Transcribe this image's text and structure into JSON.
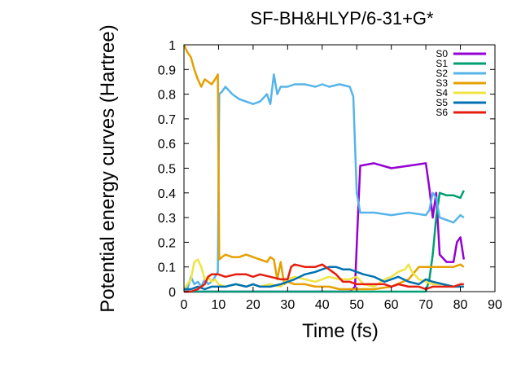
{
  "chart_data": {
    "type": "line",
    "title": "SF-BH&HLYP/6-31+G*",
    "xlabel": "Time (fs)",
    "ylabel": "Potential energy curves (Hartree)",
    "xlim": [
      0,
      90
    ],
    "ylim": [
      0,
      1
    ],
    "xticks": [
      "0",
      "10",
      "20",
      "30",
      "40",
      "50",
      "60",
      "70",
      "80",
      "90"
    ],
    "yticks": [
      "0",
      "0.1",
      "0.2",
      "0.3",
      "0.4",
      "0.5",
      "0.6",
      "0.7",
      "0.8",
      "0.9",
      "1"
    ],
    "grid": false,
    "legend_position": "top-right",
    "series": [
      {
        "name": "S0",
        "color": "#9400d3",
        "x": [
          0,
          5,
          10,
          20,
          30,
          40,
          48,
          49.5,
          50.5,
          51,
          55,
          60,
          65,
          70,
          71,
          72,
          73,
          74,
          76,
          78,
          79,
          80,
          81
        ],
        "y": [
          0,
          0,
          0,
          0,
          0,
          0,
          0,
          0.02,
          0.35,
          0.51,
          0.52,
          0.5,
          0.51,
          0.52,
          0.42,
          0.3,
          0.4,
          0.15,
          0.12,
          0.12,
          0.2,
          0.22,
          0.13
        ]
      },
      {
        "name": "S1",
        "color": "#009e73",
        "x": [
          0,
          10,
          20,
          30,
          40,
          50,
          60,
          70,
          71,
          72,
          73,
          74,
          76,
          78,
          80,
          81
        ],
        "y": [
          0,
          0,
          0,
          0,
          0,
          0,
          0,
          0,
          0.05,
          0.15,
          0.3,
          0.4,
          0.39,
          0.39,
          0.38,
          0.41
        ]
      },
      {
        "name": "S2",
        "color": "#56b4e9",
        "x": [
          0,
          1,
          2,
          3,
          4,
          5,
          6,
          7,
          8,
          9,
          9.8,
          10.2,
          11,
          12,
          14,
          16,
          18,
          20,
          22,
          24,
          25,
          26,
          27,
          28,
          30,
          32,
          35,
          38,
          40,
          42,
          45,
          48,
          49,
          50,
          51,
          55,
          60,
          65,
          70,
          71,
          72,
          73,
          74,
          76,
          78,
          80,
          81
        ],
        "y": [
          0.02,
          0.01,
          0.06,
          0.03,
          0.04,
          0.02,
          0.05,
          0.03,
          0.04,
          0.06,
          0.08,
          0.8,
          0.81,
          0.83,
          0.8,
          0.78,
          0.77,
          0.76,
          0.77,
          0.8,
          0.76,
          0.88,
          0.8,
          0.83,
          0.83,
          0.84,
          0.84,
          0.83,
          0.84,
          0.83,
          0.84,
          0.83,
          0.79,
          0.4,
          0.32,
          0.32,
          0.31,
          0.32,
          0.31,
          0.33,
          0.4,
          0.38,
          0.3,
          0.29,
          0.28,
          0.31,
          0.3
        ]
      },
      {
        "name": "S3",
        "color": "#e69f00",
        "x": [
          0,
          1,
          2,
          3,
          4,
          5,
          6,
          7,
          8,
          9,
          9.8,
          10.2,
          11,
          12,
          14,
          16,
          18,
          20,
          22,
          24,
          25,
          26,
          27,
          28,
          29,
          30,
          32,
          35,
          38,
          40,
          42,
          45,
          48,
          50,
          55,
          60,
          65,
          68,
          70,
          72,
          75,
          78,
          80,
          81
        ],
        "y": [
          1.0,
          0.97,
          0.95,
          0.9,
          0.86,
          0.83,
          0.86,
          0.85,
          0.84,
          0.86,
          0.88,
          0.13,
          0.14,
          0.15,
          0.14,
          0.14,
          0.15,
          0.14,
          0.13,
          0.12,
          0.14,
          0.13,
          0.05,
          0.12,
          0.03,
          0.04,
          0.03,
          0.03,
          0.02,
          0.02,
          0.02,
          0.01,
          0.01,
          0.01,
          0.01,
          0.02,
          0.05,
          0.1,
          0.1,
          0.1,
          0.1,
          0.1,
          0.11,
          0.1
        ]
      },
      {
        "name": "S4",
        "color": "#f0e442",
        "x": [
          0,
          1,
          2,
          3,
          4,
          5,
          6,
          7,
          8,
          9,
          10,
          12,
          15,
          18,
          20,
          22,
          25,
          28,
          30,
          32,
          35,
          38,
          40,
          42,
          45,
          48,
          50,
          52,
          55,
          58,
          60,
          62,
          64,
          65,
          66,
          68,
          70,
          72,
          75,
          78,
          80,
          81
        ],
        "y": [
          0.01,
          0.03,
          0.05,
          0.12,
          0.13,
          0.1,
          0.05,
          0.06,
          0.04,
          0.05,
          0.03,
          0.02,
          0.03,
          0.02,
          0.03,
          0.02,
          0.03,
          0.02,
          0.05,
          0.06,
          0.05,
          0.04,
          0.05,
          0.06,
          0.05,
          0.05,
          0.06,
          0.03,
          0.02,
          0.05,
          0.06,
          0.08,
          0.09,
          0.11,
          0.08,
          0.05,
          0.04,
          0.03,
          0.03,
          0.02,
          0.02,
          0.02
        ]
      },
      {
        "name": "S5",
        "color": "#0072b2",
        "x": [
          0,
          2,
          4,
          6,
          8,
          10,
          12,
          15,
          18,
          20,
          22,
          25,
          28,
          30,
          32,
          35,
          38,
          40,
          42,
          44,
          46,
          48,
          50,
          52,
          55,
          58,
          60,
          62,
          65,
          68,
          70,
          72,
          75,
          78,
          80,
          81
        ],
        "y": [
          0.01,
          0.01,
          0.02,
          0.01,
          0.02,
          0.02,
          0.02,
          0.03,
          0.02,
          0.03,
          0.02,
          0.02,
          0.03,
          0.04,
          0.05,
          0.07,
          0.08,
          0.09,
          0.1,
          0.1,
          0.09,
          0.09,
          0.08,
          0.07,
          0.06,
          0.04,
          0.05,
          0.06,
          0.04,
          0.03,
          0.05,
          0.04,
          0.03,
          0.02,
          0.02,
          0.02
        ]
      },
      {
        "name": "S6",
        "color": "#e51e10",
        "x": [
          0,
          2,
          4,
          6,
          7,
          8,
          10,
          12,
          15,
          18,
          20,
          22,
          25,
          28,
          30,
          31,
          32,
          35,
          38,
          40,
          42,
          44,
          46,
          48,
          50,
          52,
          55,
          58,
          60,
          62,
          65,
          68,
          70,
          72,
          75,
          78,
          80,
          81
        ],
        "y": [
          0,
          0,
          0.01,
          0.03,
          0.06,
          0.07,
          0.07,
          0.06,
          0.07,
          0.07,
          0.06,
          0.07,
          0.06,
          0.05,
          0.05,
          0.1,
          0.11,
          0.1,
          0.1,
          0.11,
          0.09,
          0.07,
          0.04,
          0.04,
          0.03,
          0.03,
          0.03,
          0.03,
          0.02,
          0.03,
          0.02,
          0.02,
          0.01,
          0.02,
          0.02,
          0.02,
          0.03,
          0.03
        ]
      }
    ]
  }
}
